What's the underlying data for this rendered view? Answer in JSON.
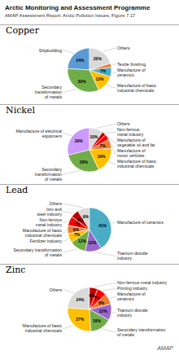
{
  "title": "Arctic Monitoring and Assessment Programme",
  "subtitle": "AMAP Assessment Report: Arctic Pollution Issues, Figure 7.17",
  "annotations": [
    "AMAP"
  ],
  "chart_data": [
    {
      "type": "pie",
      "title": "Copper",
      "categories": [
        "Shipbuilding",
        "Secondary\ntransformation\nof metals",
        "Manufacture of basic\nindustrial chemicals",
        "Manufacture of\nceramics",
        "Textile finishing",
        "Others"
      ],
      "values": [
        24,
        33,
        13,
        7,
        3,
        20
      ],
      "value_labels": [
        "24%",
        "33%",
        "13%",
        "7%",
        null,
        "20%"
      ],
      "colors": [
        "#5b9bd5",
        "#70ad47",
        "#ffc000",
        "#4bacc6",
        "#ed7d31",
        "#d9d9d9"
      ],
      "data_labels": true
    },
    {
      "type": "pie",
      "title": "Nickel",
      "categories": [
        "Manufacture of electrical\nequipment",
        "Secondary\ntransformation\nof metals",
        "Manufacture of basic\nindustrial chemicals",
        "Manufacture of\nmotor vehicles",
        "Manufacture of\nvegetable oil and fat",
        "Non-ferrous\nmetal industry",
        "Others"
      ],
      "values": [
        29,
        28,
        19,
        7,
        4,
        3,
        10
      ],
      "value_labels": [
        "29%",
        "28%",
        "19%",
        "7%",
        null,
        null,
        "10%"
      ],
      "colors": [
        "#cc99ff",
        "#70ad47",
        "#ffc000",
        "#ed7d31",
        "#ff0000",
        "#c00000",
        "#d9d9d9"
      ],
      "data_labels": true
    },
    {
      "type": "pie",
      "title": "Lead",
      "categories": [
        "Others",
        "Iron and\nsteel industry",
        "Non-ferrous\nmetal industry",
        "Manufacture of basic\nindustrial chemicals",
        "Fertilizer industry",
        "Secondary transformation\nof metals",
        "Titanium dioxide\nindustry",
        "Manufacture of ceramics"
      ],
      "values": [
        9,
        6,
        7,
        6,
        7,
        12,
        12,
        41
      ],
      "value_labels": [
        "9%",
        "6%",
        "7%",
        "6%",
        "7%",
        "12%",
        "12%",
        "41%"
      ],
      "colors": [
        "#d9d9d9",
        "#c00000",
        "#ff0000",
        "#ed7d31",
        "#ffc000",
        "#70ad47",
        "#9966cc",
        "#4bacc6"
      ],
      "data_labels": true
    },
    {
      "type": "pie",
      "title": "Zinc",
      "categories": [
        "Others",
        "Manufacture of basic\nindustrial chemicals",
        "Secondary transformation\nof metals",
        "Titanium dioxide\nindustry",
        "Manufacture of\nceramics",
        "Printing industry",
        "Non-ferrous metal industry"
      ],
      "values": [
        24,
        27,
        16,
        12,
        8,
        7,
        6
      ],
      "value_labels": [
        "24%",
        "27%",
        "16%",
        "12%",
        "8%",
        "7%",
        "6%"
      ],
      "colors": [
        "#d9d9d9",
        "#ffc000",
        "#70ad47",
        "#9966cc",
        "#ed7d31",
        "#ff0000",
        "#c00000"
      ],
      "data_labels": true
    }
  ]
}
